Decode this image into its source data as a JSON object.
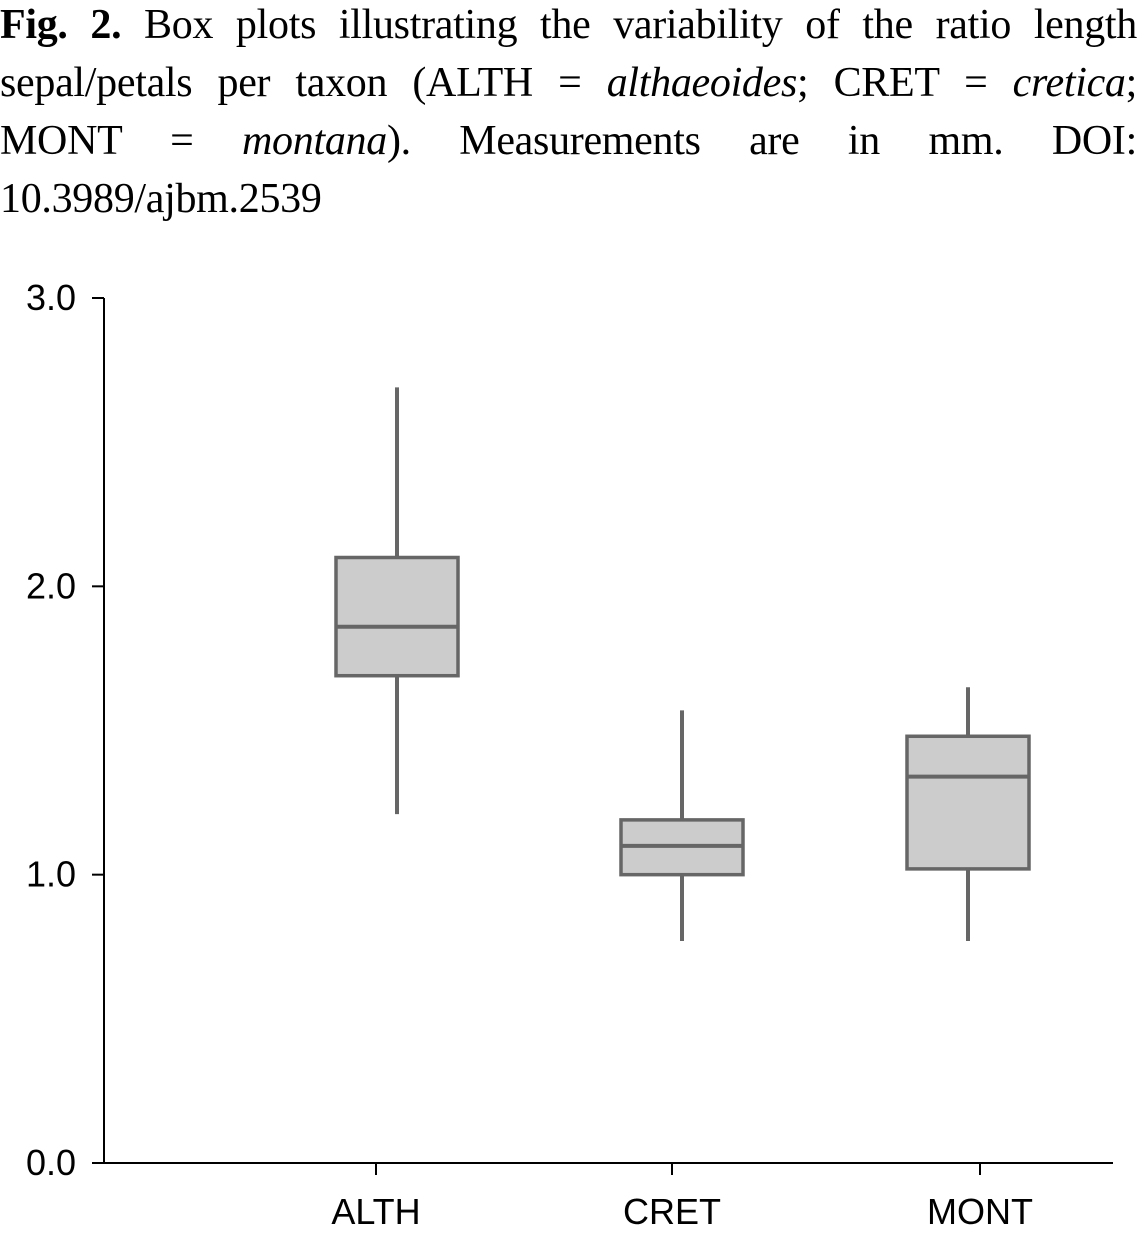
{
  "caption": {
    "fig_label": "Fig. 2.",
    "text_1": " Box plots illustrating the variability of the ratio length sepal/petals per taxon (ALTH = ",
    "italic_1": "althaeoides",
    "text_2": "; CRET = ",
    "italic_2": "cretica",
    "text_3": "; MONT = ",
    "italic_3": "montana",
    "text_4": "). Measurements are in mm. DOI: 10.3989/ajbm.2539"
  },
  "chart_data": {
    "type": "box",
    "title": "",
    "xlabel": "",
    "ylabel": "",
    "ylim": [
      0,
      3
    ],
    "yticks": [
      "0.0",
      "1.0",
      "2.0",
      "3.0"
    ],
    "categories": [
      "ALTH",
      "CRET",
      "MONT"
    ],
    "boxes": [
      {
        "category": "ALTH",
        "min": 1.21,
        "q1": 1.69,
        "median": 1.86,
        "q3": 2.1,
        "max": 2.69
      },
      {
        "category": "CRET",
        "min": 0.77,
        "q1": 1.0,
        "median": 1.1,
        "q3": 1.19,
        "max": 1.57
      },
      {
        "category": "MONT",
        "min": 0.77,
        "q1": 1.02,
        "median": 1.34,
        "q3": 1.48,
        "max": 1.65
      }
    ],
    "grid": false,
    "legend": "none",
    "colors": {
      "box_fill": "#cccccc",
      "box_stroke": "#666666",
      "axis": "#000000"
    }
  }
}
